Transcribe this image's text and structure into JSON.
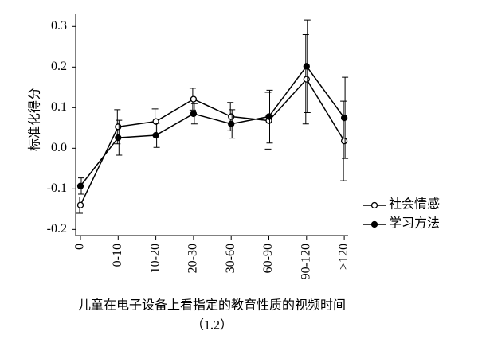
{
  "chart_data": {
    "type": "line",
    "y_label": "标准化得分",
    "x_label": "儿童在电子设备上看指定的教育性质的视频时间",
    "caption": "（1.2）",
    "categories": [
      "0",
      "0-10",
      "10-20",
      "20-30",
      "30-60",
      "60-90",
      "90-120",
      ">120"
    ],
    "series": [
      {
        "name": "社会情感",
        "color": "#000000",
        "marker": "hollow",
        "values": [
          -0.14,
          0.053,
          0.066,
          0.121,
          0.078,
          0.068,
          0.17,
          0.018
        ],
        "errors": [
          0.02,
          0.042,
          0.031,
          0.027,
          0.035,
          0.07,
          0.11,
          0.098
        ]
      },
      {
        "name": "学习方法",
        "color": "#000000",
        "marker": "solid",
        "values": [
          -0.093,
          0.026,
          0.032,
          0.085,
          0.06,
          0.078,
          0.202,
          0.075
        ],
        "errors": [
          0.02,
          0.043,
          0.03,
          0.025,
          0.035,
          0.065,
          0.114,
          0.1
        ]
      }
    ],
    "ylim": [
      -0.215,
      0.33
    ],
    "yticks": [
      -0.2,
      -0.1,
      {
        "value": 0,
        "label": "0.0"
      },
      0.1,
      0.2,
      0.3
    ],
    "legend": "right"
  }
}
